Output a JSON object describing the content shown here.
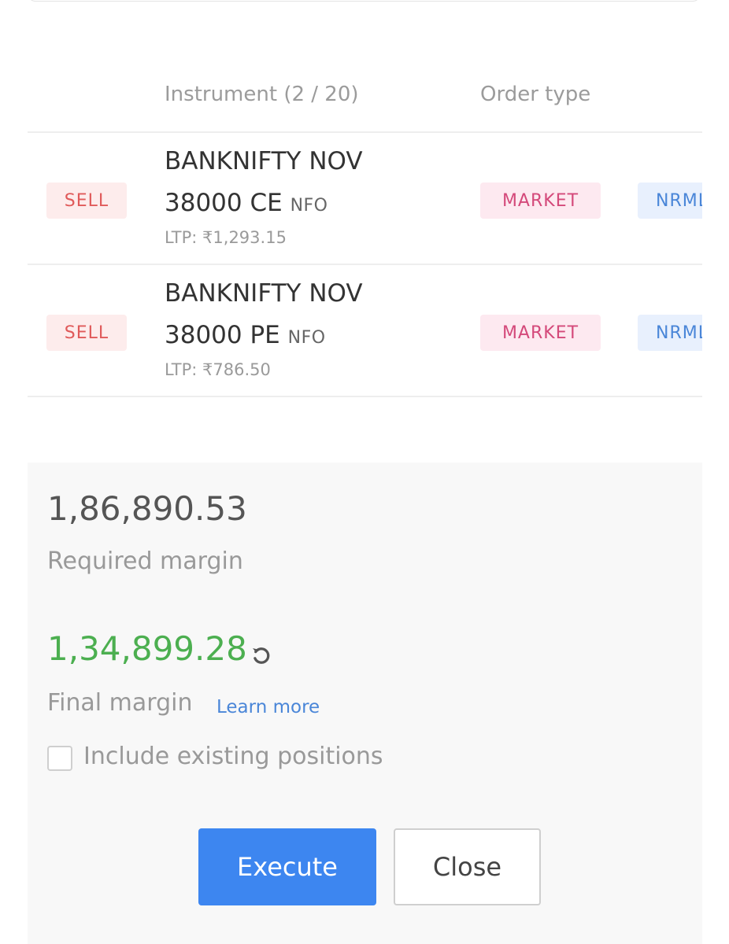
{
  "table": {
    "headers": {
      "instrument": "Instrument (2 / 20)",
      "order_type": "Order type"
    },
    "rows": [
      {
        "side": "SELL",
        "name_line1": "BANKNIFTY NOV",
        "name_line2": "38000 CE",
        "exchange": "NFO",
        "ltp": "LTP: ₹1,293.15",
        "order_type": "MARKET",
        "product": "NRML"
      },
      {
        "side": "SELL",
        "name_line1": "BANKNIFTY NOV",
        "name_line2": "38000 PE",
        "exchange": "NFO",
        "ltp": "LTP: ₹786.50",
        "order_type": "MARKET",
        "product": "NRML"
      }
    ]
  },
  "margin": {
    "required_value": "1,86,890.53",
    "required_label": "Required margin",
    "final_value": "1,34,899.28",
    "final_label": "Final margin",
    "learn_more": "Learn more",
    "include_positions_label": "Include existing positions",
    "include_positions_checked": false
  },
  "buttons": {
    "execute": "Execute",
    "close": "Close"
  },
  "icons": {
    "refresh": "refresh-icon"
  },
  "colors": {
    "primary": "#3d86f0",
    "sell": "#e05a5a",
    "market": "#d4497a",
    "profit": "#4caf50",
    "link": "#4a86d8"
  }
}
